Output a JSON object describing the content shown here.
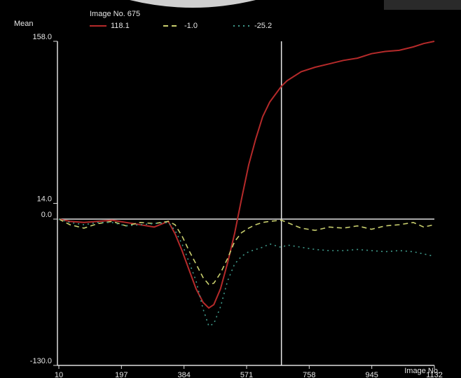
{
  "chart_data": {
    "type": "line",
    "legend_title": "Image No. 675",
    "y_label": "Mean",
    "x_label": "Image No.",
    "cursor": 675,
    "x": [
      10,
      43,
      85,
      127,
      169,
      211,
      253,
      295,
      337,
      357,
      378,
      399,
      420,
      441,
      458,
      473,
      493,
      514,
      535,
      556,
      577,
      598,
      619,
      640,
      675,
      692,
      734,
      776,
      818,
      860,
      902,
      944,
      985,
      1027,
      1069,
      1100,
      1132
    ],
    "xlim": [
      10,
      1132
    ],
    "xticks": [
      10,
      197,
      384,
      571,
      758,
      945,
      1132
    ],
    "ylim": [
      -130,
      158
    ],
    "yticks": [
      {
        "value": -130,
        "label": "-130.0"
      },
      {
        "value": 0,
        "label": "0.0"
      },
      {
        "value": 14,
        "label": "14.0"
      },
      {
        "value": 158,
        "label": "158.0"
      }
    ],
    "series": [
      {
        "name": "118.1",
        "color": "#b52a2a",
        "style": "solid",
        "values": [
          0,
          -2,
          -3,
          -2,
          -1,
          -3,
          -5,
          -7,
          -2,
          -13,
          -28,
          -45,
          -62,
          -74,
          -79,
          -76,
          -62,
          -39,
          -13,
          18,
          48,
          71,
          91,
          104,
          118.1,
          123,
          131,
          135,
          138,
          141,
          143,
          147,
          149,
          150,
          153,
          156,
          158
        ]
      },
      {
        "name": "-1.0",
        "color": "#c9cf6e",
        "style": "dashed",
        "values": [
          0,
          -5,
          -8,
          -4,
          -2,
          -6,
          -3,
          -4,
          -2,
          -5,
          -15,
          -28,
          -40,
          -52,
          -58,
          -57,
          -48,
          -35,
          -20,
          -12,
          -8,
          -5,
          -3,
          -2,
          -1.0,
          -3,
          -8,
          -10,
          -7,
          -8,
          -6,
          -9,
          -6,
          -5,
          -3,
          -7,
          -5
        ]
      },
      {
        "name": "-25.2",
        "color": "#3f9a8b",
        "style": "dotted",
        "values": [
          0,
          -3,
          -5,
          -3,
          -3,
          -6,
          -5,
          -4,
          -3,
          -10,
          -22,
          -38,
          -55,
          -80,
          -95,
          -93,
          -78,
          -55,
          -40,
          -33,
          -29,
          -27,
          -25,
          -22,
          -25.2,
          -23,
          -25,
          -27,
          -28,
          -28,
          -27,
          -28,
          -29,
          -28,
          -29,
          -31,
          -33
        ]
      }
    ]
  }
}
